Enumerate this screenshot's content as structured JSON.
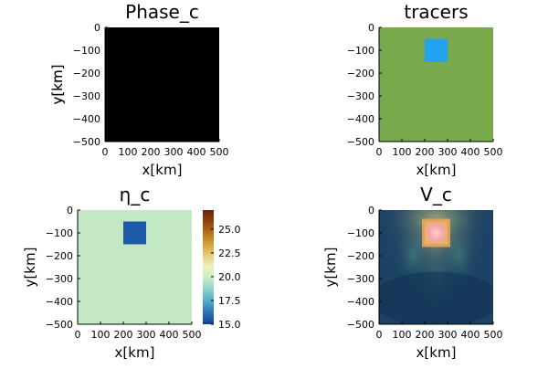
{
  "chart_data": [
    {
      "type": "heatmap",
      "title": "Phase_c",
      "xlabel": "x[km]",
      "ylabel": "y[km]",
      "xlim": [
        0,
        500
      ],
      "ylim": [
        -500,
        0
      ],
      "xticks": [
        "0",
        "100",
        "200",
        "300",
        "400",
        "500"
      ],
      "yticks": [
        "0",
        "−100",
        "−200",
        "−300",
        "−400",
        "−500"
      ],
      "background_color": "#000000",
      "grid": false
    },
    {
      "type": "heatmap",
      "title": "tracers",
      "xlabel": "x[km]",
      "ylabel": "y[km]",
      "xlim": [
        0,
        500
      ],
      "ylim": [
        -500,
        0
      ],
      "xticks": [
        "0",
        "100",
        "200",
        "300",
        "400",
        "500"
      ],
      "yticks": [
        "0",
        "−100",
        "−200",
        "−300",
        "−400",
        "−500"
      ],
      "background_color": "#7aa84c",
      "inclusion": {
        "x": [
          200,
          300
        ],
        "y": [
          -150,
          -50
        ],
        "color": "#22a2ee"
      },
      "grid": false
    },
    {
      "type": "heatmap",
      "title": "η_c",
      "xlabel": "x[km]",
      "ylabel": "y[km]",
      "xlim": [
        0,
        500
      ],
      "ylim": [
        -500,
        0
      ],
      "xticks": [
        "0",
        "100",
        "200",
        "300",
        "400",
        "500"
      ],
      "yticks": [
        "0",
        "−100",
        "−200",
        "−300",
        "−400",
        "−500"
      ],
      "background_value": 20.0,
      "background_color": "#c5e8c4",
      "inclusion": {
        "x": [
          200,
          300
        ],
        "y": [
          -150,
          -50
        ],
        "value": 15.0,
        "color": "#1d5aa8"
      },
      "colorbar": {
        "range": [
          15.0,
          27.0
        ],
        "ticks": [
          "15.0",
          "17.5",
          "20.0",
          "22.5",
          "25.0"
        ],
        "tick_values": [
          15.0,
          17.5,
          20.0,
          22.5,
          25.0
        ],
        "colors": [
          "#0d3f94",
          "#2a72b6",
          "#4fa8c8",
          "#8ad1c8",
          "#c8ebc5",
          "#eef3c0",
          "#e6cf78",
          "#d2a13c",
          "#b66f1c",
          "#8e420c",
          "#6a2406"
        ]
      },
      "grid": false
    },
    {
      "type": "heatmap",
      "title": "V_c",
      "xlabel": "x[km]",
      "ylabel": "y[km]",
      "xlim": [
        0,
        500
      ],
      "ylim": [
        -500,
        0
      ],
      "xticks": [
        "0",
        "100",
        "200",
        "300",
        "400",
        "500"
      ],
      "yticks": [
        "0",
        "−100",
        "−200",
        "−300",
        "−400",
        "−500"
      ],
      "background_color": "#1b3f5e",
      "inclusion": {
        "x": [
          200,
          300
        ],
        "y": [
          -150,
          -50
        ]
      },
      "grid": false
    }
  ]
}
